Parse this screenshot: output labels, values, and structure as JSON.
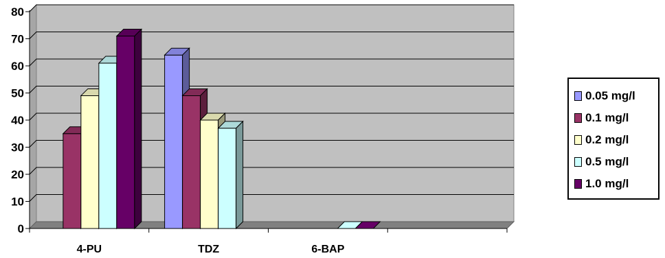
{
  "chart_data": {
    "type": "bar",
    "title": "",
    "xlabel": "",
    "ylabel": "",
    "categories": [
      "4-PU",
      "TDZ",
      "6-BAP"
    ],
    "ylim": [
      0,
      80
    ],
    "yticks": [
      "0",
      "10",
      "20",
      "30",
      "40",
      "50",
      "60",
      "70",
      "80"
    ],
    "grid": true,
    "legend_position": "right",
    "three_d": true,
    "series": [
      {
        "name": "0.05 mg/l",
        "color": "#9999ff",
        "values": [
          0,
          64,
          0
        ]
      },
      {
        "name": "0.1 mg/l",
        "color": "#993366",
        "values": [
          35,
          49,
          0
        ]
      },
      {
        "name": "0.2 mg/l",
        "color": "#ffffcc",
        "values": [
          49,
          40,
          0
        ]
      },
      {
        "name": "0.5 mg/l",
        "color": "#ccffff",
        "values": [
          61,
          37,
          0
        ]
      },
      {
        "name": "1.0 mg/l",
        "color": "#660066",
        "values": [
          71,
          0,
          0
        ]
      }
    ],
    "plot_area_color": "#c0c0c0",
    "floor_color": "#808080"
  }
}
